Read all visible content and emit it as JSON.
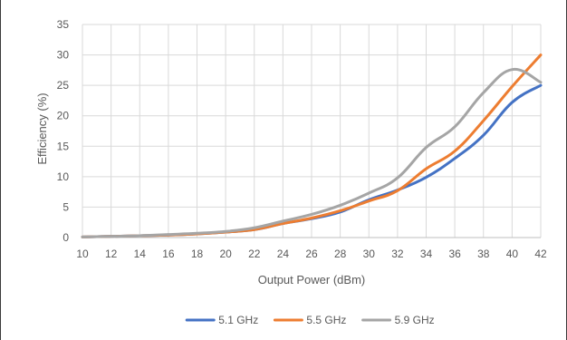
{
  "chart_data": {
    "type": "line",
    "title": "",
    "xlabel": "Output Power (dBm)",
    "ylabel": "Efficiency (%)",
    "xlim": [
      10,
      42
    ],
    "ylim": [
      0,
      35
    ],
    "x_ticks": [
      "10",
      "12",
      "14",
      "16",
      "18",
      "20",
      "22",
      "24",
      "26",
      "28",
      "30",
      "32",
      "34",
      "36",
      "38",
      "40",
      "42"
    ],
    "y_ticks": [
      "0",
      "5",
      "10",
      "15",
      "20",
      "25",
      "30",
      "35"
    ],
    "grid": true,
    "legend_position": "bottom",
    "x": [
      10,
      12,
      14,
      16,
      18,
      20,
      22,
      24,
      26,
      28,
      30,
      32,
      34,
      36,
      38,
      40,
      42
    ],
    "series": [
      {
        "name": "5.1 GHz",
        "color": "#4472c4",
        "values": [
          0.1,
          0.2,
          0.3,
          0.4,
          0.6,
          0.9,
          1.3,
          2.3,
          3.1,
          4.2,
          6.2,
          7.8,
          9.9,
          13.0,
          16.8,
          22.2,
          25.0
        ]
      },
      {
        "name": "5.5 GHz",
        "color": "#ed7d31",
        "values": [
          0.1,
          0.2,
          0.3,
          0.4,
          0.6,
          0.9,
          1.3,
          2.3,
          3.2,
          4.4,
          6.0,
          7.7,
          11.3,
          14.2,
          19.2,
          24.8,
          30.0
        ]
      },
      {
        "name": "5.9 GHz",
        "color": "#a5a5a5",
        "values": [
          0.1,
          0.2,
          0.3,
          0.5,
          0.7,
          1.0,
          1.6,
          2.7,
          3.8,
          5.3,
          7.3,
          9.8,
          14.8,
          18.2,
          23.8,
          27.6,
          25.5
        ]
      }
    ]
  }
}
